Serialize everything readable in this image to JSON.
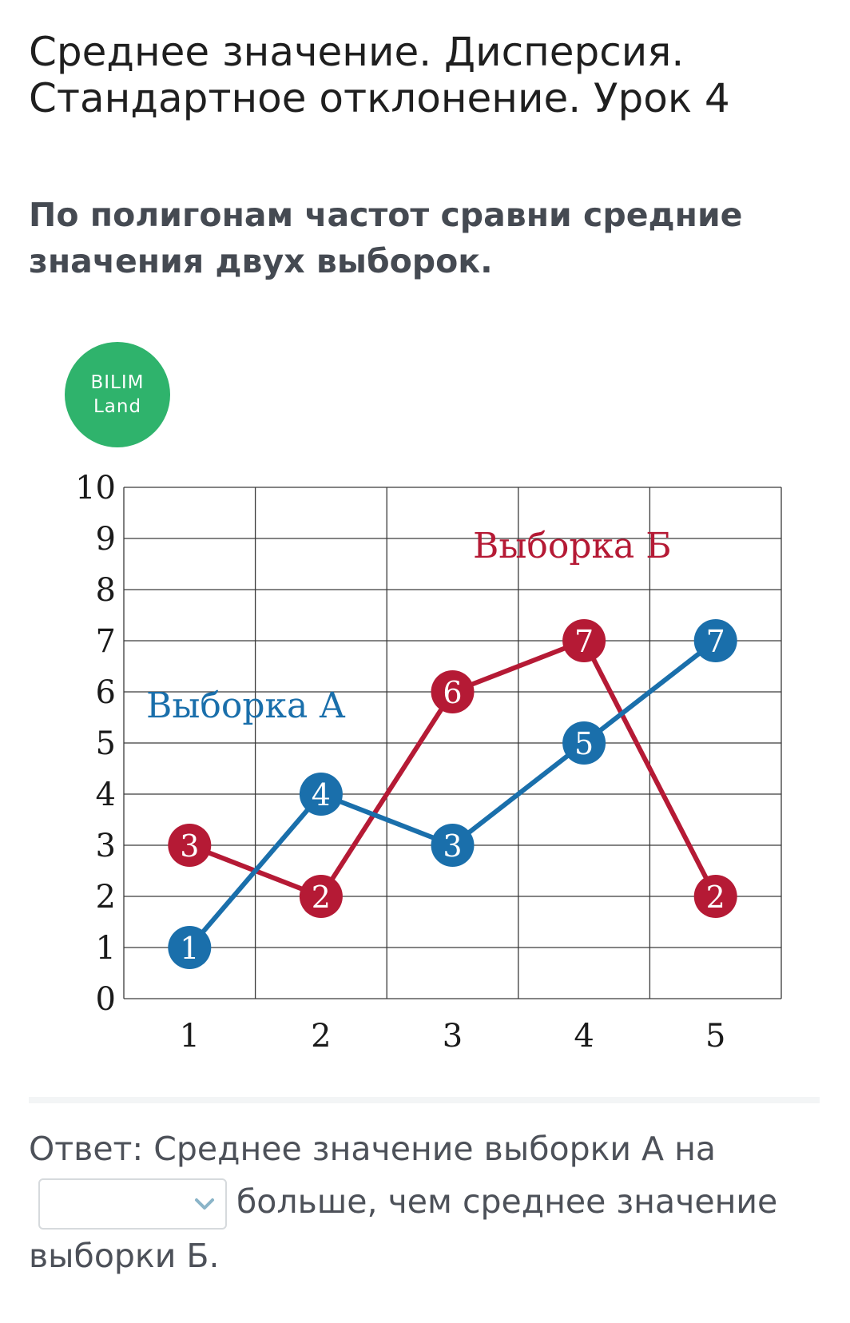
{
  "header": {
    "title": "Среднее значение. Дисперсия. Стандартное отклонение. Урок 4"
  },
  "question": {
    "text": "По полигонам частот сравни средние значения двух выборок."
  },
  "logo": {
    "line1": "BILIM",
    "line2": "Land",
    "color": "#2fb36c"
  },
  "chart_data": {
    "type": "line",
    "x": [
      1,
      2,
      3,
      4,
      5
    ],
    "xlim": [
      0.5,
      5.5
    ],
    "ylim": [
      0,
      10
    ],
    "xticks": [
      "1",
      "2",
      "3",
      "4",
      "5"
    ],
    "yticks": [
      "0",
      "1",
      "2",
      "3",
      "4",
      "5",
      "6",
      "7",
      "8",
      "9",
      "10"
    ],
    "grid": true,
    "series": [
      {
        "name": "Выборка А",
        "color": "#1a6fab",
        "values": [
          1,
          4,
          3,
          5,
          7
        ],
        "labels": [
          "1",
          "4",
          "3",
          "5",
          "7"
        ]
      },
      {
        "name": "Выборка Б",
        "color": "#b51a35",
        "values": [
          3,
          2,
          6,
          7,
          2
        ],
        "labels": [
          "3",
          "2",
          "6",
          "7",
          "2"
        ]
      }
    ]
  },
  "answer": {
    "prefix": "Ответ: Среднее значение выборки А на",
    "select_value": "",
    "suffix": "больше, чем среднее значение",
    "end": "выборки Б."
  }
}
